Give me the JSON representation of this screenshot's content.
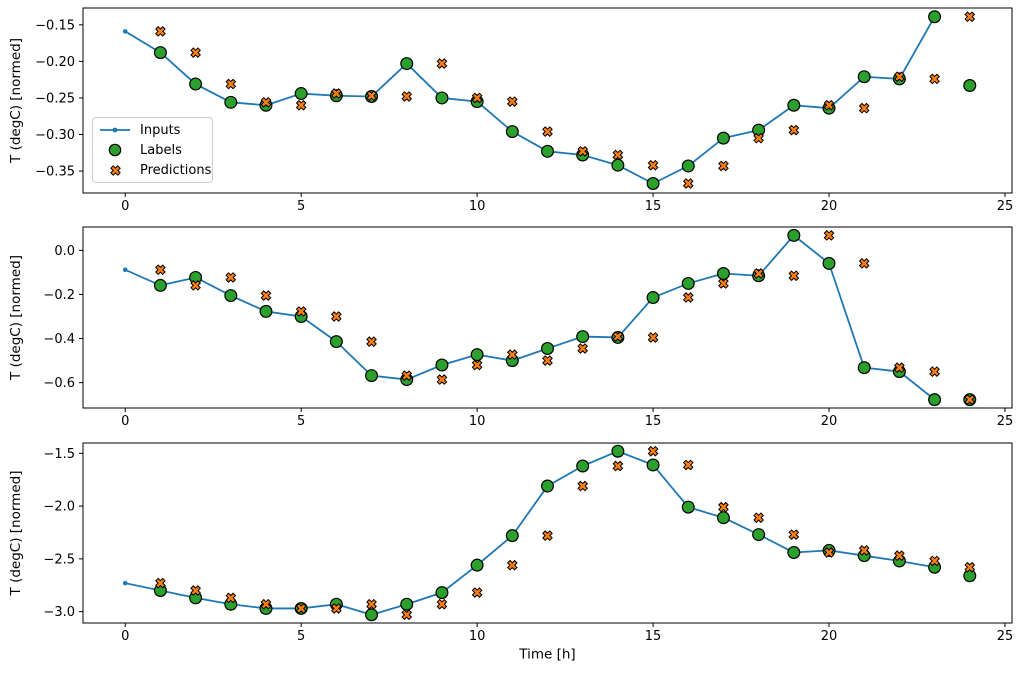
{
  "figure": {
    "xlabel": "Time [h]",
    "ylabel": "T (degC) [normed]",
    "background": "#ffffff"
  },
  "colors": {
    "inputs": "#1f77b4",
    "labels": "#2ca02c",
    "predictions": "#ff7f0e",
    "marker_edge": "#000000",
    "axis": "#000000",
    "legend_border": "#cccccc"
  },
  "legend": {
    "position": "upper-left-of-first-subplot",
    "entries": [
      {
        "label": "Inputs",
        "marker": "line-with-dot"
      },
      {
        "label": "Labels",
        "marker": "circle"
      },
      {
        "label": "Predictions",
        "marker": "x"
      }
    ]
  },
  "chart_data": [
    {
      "type": "line",
      "title": "",
      "xlabel": "",
      "ylabel": "T (degC) [normed]",
      "grid": false,
      "xlim": [
        -1.2,
        25.2
      ],
      "ylim": [
        -0.38,
        -0.127
      ],
      "xticks": [
        0,
        5,
        10,
        15,
        20,
        25
      ],
      "yticks": [
        -0.15,
        -0.2,
        -0.25,
        -0.3,
        -0.35
      ],
      "ytick_decimals": 2,
      "series": [
        {
          "name": "Inputs",
          "type": "line+dot",
          "x": [
            0,
            1,
            2,
            3,
            4,
            5,
            6,
            7,
            8,
            9,
            10,
            11,
            12,
            13,
            14,
            15,
            16,
            17,
            18,
            19,
            20,
            21,
            22,
            23
          ],
          "y": [
            -0.159,
            -0.188,
            -0.231,
            -0.256,
            -0.26,
            -0.244,
            -0.247,
            -0.248,
            -0.203,
            -0.25,
            -0.255,
            -0.296,
            -0.323,
            -0.328,
            -0.342,
            -0.367,
            -0.343,
            -0.305,
            -0.294,
            -0.26,
            -0.264,
            -0.221,
            -0.224,
            -0.139
          ]
        },
        {
          "name": "Labels",
          "type": "scatter-circle",
          "x": [
            1,
            2,
            3,
            4,
            5,
            6,
            7,
            8,
            9,
            10,
            11,
            12,
            13,
            14,
            15,
            16,
            17,
            18,
            19,
            20,
            21,
            22,
            23,
            24
          ],
          "y": [
            -0.188,
            -0.231,
            -0.256,
            -0.26,
            -0.244,
            -0.247,
            -0.248,
            -0.203,
            -0.25,
            -0.255,
            -0.296,
            -0.323,
            -0.328,
            -0.342,
            -0.367,
            -0.343,
            -0.305,
            -0.294,
            -0.26,
            -0.264,
            -0.221,
            -0.224,
            -0.139,
            -0.233
          ]
        },
        {
          "name": "Predictions",
          "type": "scatter-x",
          "x": [
            1,
            2,
            3,
            4,
            5,
            6,
            7,
            8,
            9,
            10,
            11,
            12,
            13,
            14,
            15,
            16,
            17,
            18,
            19,
            20,
            21,
            22,
            23,
            24
          ],
          "y": [
            -0.159,
            -0.188,
            -0.231,
            -0.256,
            -0.26,
            -0.244,
            -0.247,
            -0.248,
            -0.203,
            -0.25,
            -0.255,
            -0.296,
            -0.323,
            -0.328,
            -0.342,
            -0.367,
            -0.343,
            -0.305,
            -0.294,
            -0.26,
            -0.264,
            -0.221,
            -0.224,
            -0.139
          ]
        }
      ]
    },
    {
      "type": "line",
      "title": "",
      "xlabel": "",
      "ylabel": "T (degC) [normed]",
      "grid": false,
      "xlim": [
        -1.2,
        25.2
      ],
      "ylim": [
        -0.715,
        0.106
      ],
      "xticks": [
        0,
        5,
        10,
        15,
        20,
        25
      ],
      "yticks": [
        0.0,
        -0.2,
        -0.4,
        -0.6
      ],
      "ytick_decimals": 1,
      "series": [
        {
          "name": "Inputs",
          "type": "line+dot",
          "x": [
            0,
            1,
            2,
            3,
            4,
            5,
            6,
            7,
            8,
            9,
            10,
            11,
            12,
            13,
            14,
            15,
            16,
            17,
            18,
            19,
            20,
            21,
            22,
            23
          ],
          "y": [
            -0.088,
            -0.159,
            -0.123,
            -0.205,
            -0.277,
            -0.3,
            -0.414,
            -0.568,
            -0.586,
            -0.52,
            -0.473,
            -0.5,
            -0.445,
            -0.391,
            -0.395,
            -0.214,
            -0.15,
            -0.105,
            -0.115,
            0.068,
            -0.059,
            -0.532,
            -0.55,
            -0.677
          ]
        },
        {
          "name": "Labels",
          "type": "scatter-circle",
          "x": [
            1,
            2,
            3,
            4,
            5,
            6,
            7,
            8,
            9,
            10,
            11,
            12,
            13,
            14,
            15,
            16,
            17,
            18,
            19,
            20,
            21,
            22,
            23,
            24
          ],
          "y": [
            -0.159,
            -0.123,
            -0.205,
            -0.277,
            -0.3,
            -0.414,
            -0.568,
            -0.586,
            -0.52,
            -0.473,
            -0.5,
            -0.445,
            -0.391,
            -0.395,
            -0.214,
            -0.15,
            -0.105,
            -0.115,
            0.068,
            -0.059,
            -0.532,
            -0.55,
            -0.677,
            -0.677
          ]
        },
        {
          "name": "Predictions",
          "type": "scatter-x",
          "x": [
            1,
            2,
            3,
            4,
            5,
            6,
            7,
            8,
            9,
            10,
            11,
            12,
            13,
            14,
            15,
            16,
            17,
            18,
            19,
            20,
            21,
            22,
            23,
            24
          ],
          "y": [
            -0.088,
            -0.159,
            -0.123,
            -0.205,
            -0.277,
            -0.3,
            -0.414,
            -0.568,
            -0.586,
            -0.52,
            -0.473,
            -0.5,
            -0.445,
            -0.391,
            -0.395,
            -0.214,
            -0.15,
            -0.105,
            -0.115,
            0.068,
            -0.059,
            -0.532,
            -0.55,
            -0.677
          ]
        }
      ]
    },
    {
      "type": "line",
      "title": "",
      "xlabel": "Time [h]",
      "ylabel": "T (degC) [normed]",
      "grid": false,
      "xlim": [
        -1.2,
        25.2
      ],
      "ylim": [
        -3.108,
        -1.402
      ],
      "xticks": [
        0,
        5,
        10,
        15,
        20,
        25
      ],
      "yticks": [
        -1.5,
        -2.0,
        -2.5,
        -3.0
      ],
      "ytick_decimals": 1,
      "series": [
        {
          "name": "Inputs",
          "type": "line+dot",
          "x": [
            0,
            1,
            2,
            3,
            4,
            5,
            6,
            7,
            8,
            9,
            10,
            11,
            12,
            13,
            14,
            15,
            16,
            17,
            18,
            19,
            20,
            21,
            22,
            23
          ],
          "y": [
            -2.73,
            -2.8,
            -2.87,
            -2.93,
            -2.97,
            -2.97,
            -2.93,
            -3.03,
            -2.93,
            -2.82,
            -2.56,
            -2.28,
            -1.81,
            -1.62,
            -1.48,
            -1.61,
            -2.01,
            -2.11,
            -2.27,
            -2.44,
            -2.42,
            -2.47,
            -2.52,
            -2.58
          ]
        },
        {
          "name": "Labels",
          "type": "scatter-circle",
          "x": [
            1,
            2,
            3,
            4,
            5,
            6,
            7,
            8,
            9,
            10,
            11,
            12,
            13,
            14,
            15,
            16,
            17,
            18,
            19,
            20,
            21,
            22,
            23,
            24
          ],
          "y": [
            -2.8,
            -2.87,
            -2.93,
            -2.97,
            -2.97,
            -2.93,
            -3.03,
            -2.93,
            -2.82,
            -2.56,
            -2.28,
            -1.81,
            -1.62,
            -1.48,
            -1.61,
            -2.01,
            -2.11,
            -2.27,
            -2.44,
            -2.42,
            -2.47,
            -2.52,
            -2.58,
            -2.66
          ]
        },
        {
          "name": "Predictions",
          "type": "scatter-x",
          "x": [
            1,
            2,
            3,
            4,
            5,
            6,
            7,
            8,
            9,
            10,
            11,
            12,
            13,
            14,
            15,
            16,
            17,
            18,
            19,
            20,
            21,
            22,
            23,
            24
          ],
          "y": [
            -2.73,
            -2.8,
            -2.87,
            -2.93,
            -2.97,
            -2.97,
            -2.93,
            -3.03,
            -2.93,
            -2.82,
            -2.56,
            -2.28,
            -1.81,
            -1.62,
            -1.48,
            -1.61,
            -2.01,
            -2.11,
            -2.27,
            -2.44,
            -2.42,
            -2.47,
            -2.52,
            -2.58
          ]
        }
      ]
    }
  ]
}
